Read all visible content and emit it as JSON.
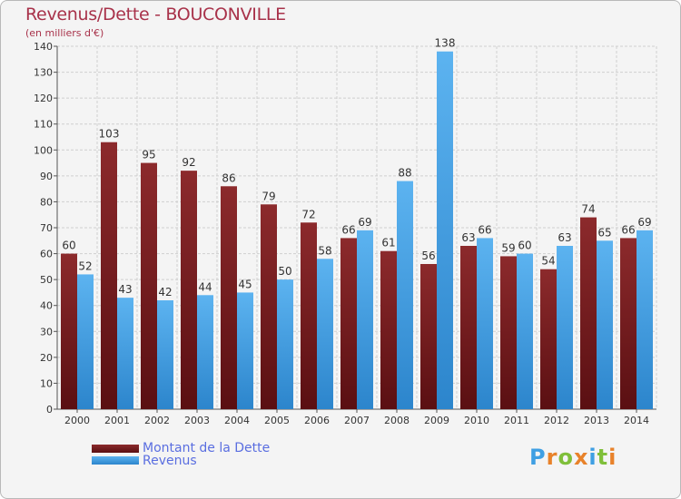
{
  "title": "Revenus/Dette - BOUCONVILLE",
  "subtitle": "(en milliers d'€)",
  "logo": "Proxiti",
  "colors": {
    "dette": "#7a1f22",
    "revenus": "#3f9fe3",
    "title": "#a8324a",
    "legend_text": "#5a6ee0"
  },
  "chart_data": {
    "type": "bar",
    "title": "Revenus/Dette - BOUCONVILLE",
    "ylabel": "(en milliers d'€)",
    "xlabel": "",
    "ylim": [
      0,
      140
    ],
    "yticks": [
      0,
      10,
      20,
      30,
      40,
      50,
      60,
      70,
      80,
      90,
      100,
      110,
      120,
      130,
      140
    ],
    "grid": true,
    "legend": "bottom-left",
    "categories": [
      "2000",
      "2001",
      "2002",
      "2003",
      "2004",
      "2005",
      "2006",
      "2007",
      "2008",
      "2009",
      "2010",
      "2011",
      "2012",
      "2013",
      "2014"
    ],
    "series": [
      {
        "name": "Montant de la Dette",
        "color": "#7a1f22",
        "values": [
          60,
          103,
          95,
          92,
          86,
          79,
          72,
          66,
          61,
          56,
          63,
          59,
          54,
          74,
          66
        ]
      },
      {
        "name": "Revenus",
        "color": "#3f9fe3",
        "values": [
          52,
          43,
          42,
          44,
          45,
          50,
          58,
          69,
          88,
          138,
          66,
          60,
          63,
          65,
          69
        ]
      }
    ]
  }
}
